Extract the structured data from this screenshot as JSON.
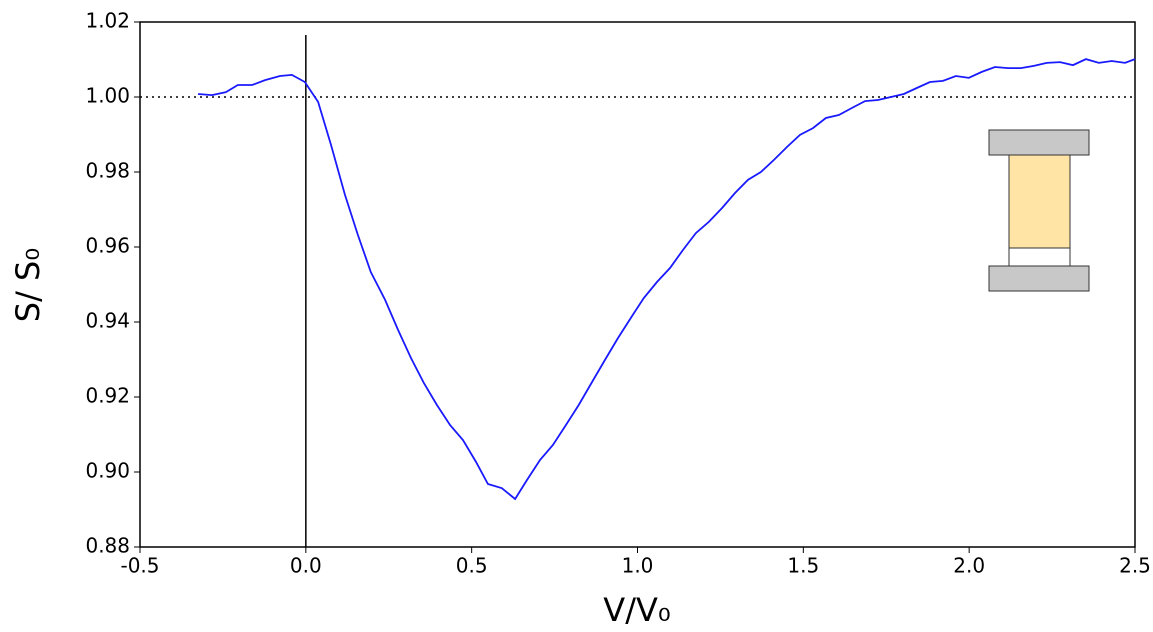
{
  "chart_data": {
    "type": "line",
    "xlabel": "V/V₀",
    "ylabel": "S/ S₀",
    "x": [
      -0.325,
      -0.283,
      -0.241,
      -0.205,
      -0.162,
      -0.123,
      -0.078,
      -0.042,
      -0.003,
      0.037,
      0.076,
      0.118,
      0.157,
      0.196,
      0.239,
      0.278,
      0.317,
      0.356,
      0.395,
      0.435,
      0.474,
      0.513,
      0.549,
      0.591,
      0.631,
      0.667,
      0.706,
      0.745,
      0.784,
      0.823,
      0.863,
      0.902,
      0.941,
      0.98,
      1.019,
      1.059,
      1.098,
      1.137,
      1.176,
      1.215,
      1.255,
      1.294,
      1.333,
      1.372,
      1.411,
      1.451,
      1.49,
      1.529,
      1.568,
      1.607,
      1.647,
      1.686,
      1.725,
      1.764,
      1.803,
      1.842,
      1.882,
      1.921,
      1.96,
      1.999,
      2.038,
      2.078,
      2.117,
      2.156,
      2.195,
      2.234,
      2.274,
      2.313,
      2.352,
      2.391,
      2.43,
      2.47,
      2.5
    ],
    "series": [
      {
        "color": "#1a1aff",
        "values": [
          1.0008,
          1.0005,
          1.0013,
          1.0032,
          1.0032,
          1.0045,
          1.0056,
          1.0059,
          1.004,
          0.9987,
          0.9872,
          0.9739,
          0.9632,
          0.9533,
          0.9459,
          0.9379,
          0.9304,
          0.9237,
          0.9179,
          0.9125,
          0.9085,
          0.9027,
          0.8968,
          0.8957,
          0.8928,
          0.8979,
          0.9032,
          0.9072,
          0.9125,
          0.9179,
          0.924,
          0.9299,
          0.9357,
          0.9411,
          0.9464,
          0.9507,
          0.9544,
          0.9592,
          0.9637,
          0.9667,
          0.9704,
          0.9744,
          0.9779,
          0.98,
          0.9832,
          0.9867,
          0.9899,
          0.9917,
          0.9944,
          0.9952,
          0.9971,
          0.9989,
          0.9992,
          1.0,
          1.0008,
          1.0024,
          1.004,
          1.0043,
          1.0056,
          1.0051,
          1.0067,
          1.008,
          1.0077,
          1.0077,
          1.0083,
          1.0091,
          1.0093,
          1.0085,
          1.0101,
          1.0091,
          1.0096,
          1.0091,
          1.0101
        ]
      }
    ],
    "xlim": [
      -0.5,
      2.5
    ],
    "xticks": [
      -0.5,
      {
        "value": 0,
        "label": "0.0"
      },
      0.5,
      {
        "value": 1,
        "label": "1.0"
      },
      1.5,
      {
        "value": 2,
        "label": "2.0"
      },
      2.5
    ],
    "ylim": [
      0.88,
      1.02
    ],
    "yticks": [
      0.88,
      {
        "value": 0.9,
        "label": "0.90"
      },
      0.92,
      0.94,
      0.96,
      0.98,
      {
        "value": 1,
        "label": "1.00"
      },
      1.02
    ],
    "hlines": [
      1.0
    ],
    "vlines": [
      0
    ]
  }
}
